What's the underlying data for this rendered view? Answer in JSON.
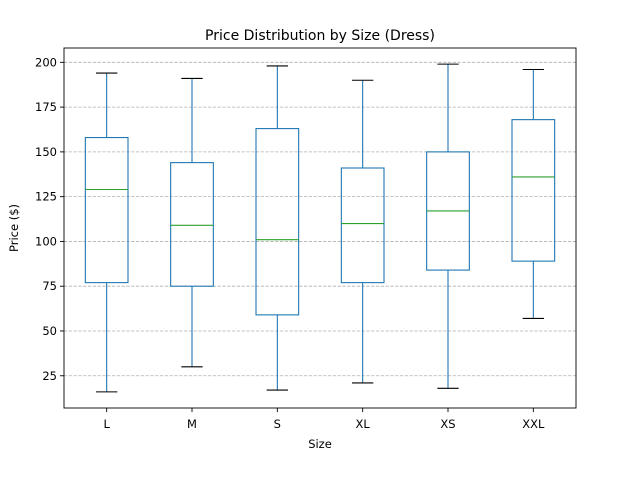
{
  "chart_data": {
    "type": "box",
    "title": "Price Distribution by Size (Dress)",
    "xlabel": "Size",
    "ylabel": "Price ($)",
    "ylim": [
      7,
      208
    ],
    "yticks": [
      25,
      50,
      75,
      100,
      125,
      150,
      175,
      200
    ],
    "grid": "y-dashed",
    "categories": [
      "L",
      "M",
      "S",
      "XL",
      "XS",
      "XXL"
    ],
    "boxes": [
      {
        "category": "L",
        "whisker_low": 16,
        "q1": 77,
        "median": 129,
        "q3": 158,
        "whisker_high": 194
      },
      {
        "category": "M",
        "whisker_low": 30,
        "q1": 75,
        "median": 109,
        "q3": 144,
        "whisker_high": 191
      },
      {
        "category": "S",
        "whisker_low": 17,
        "q1": 59,
        "median": 101,
        "q3": 163,
        "whisker_high": 198
      },
      {
        "category": "XL",
        "whisker_low": 21,
        "q1": 77,
        "median": 110,
        "q3": 141,
        "whisker_high": 190
      },
      {
        "category": "XS",
        "whisker_low": 18,
        "q1": 84,
        "median": 117,
        "q3": 150,
        "whisker_high": 199
      },
      {
        "category": "XXL",
        "whisker_low": 57,
        "q1": 89,
        "median": 136,
        "q3": 168,
        "whisker_high": 196
      }
    ],
    "colors": {
      "box": "#1f77b4",
      "median": "#2ca02c",
      "cap": "#000000",
      "grid": "#b0b0b0"
    }
  }
}
